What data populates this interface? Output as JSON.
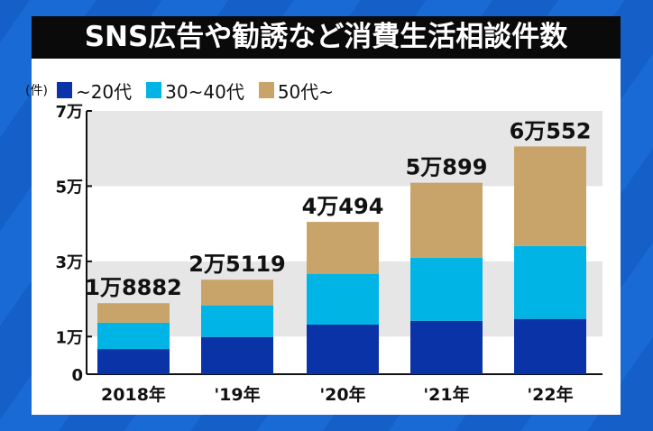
{
  "title": "SNS広告や勧誘など消費生活相談件数",
  "chart_data": {
    "type": "bar",
    "stacked": true,
    "title": "SNS広告や勧誘など消費生活相談件数",
    "unit_label": "(件)",
    "categories": [
      "2018年",
      "'19年",
      "'20年",
      "'21年",
      "'22年"
    ],
    "series": [
      {
        "name": "~20代",
        "color": "#0b33a8",
        "values": [
          6700,
          9900,
          13200,
          14200,
          14700
        ]
      },
      {
        "name": "30~40代",
        "color": "#00b4e6",
        "values": [
          7000,
          8400,
          13500,
          16800,
          19400
        ]
      },
      {
        "name": "50代~",
        "color": "#c9a46a",
        "values": [
          5182,
          6819,
          13794,
          19899,
          26452
        ]
      }
    ],
    "totals": [
      18882,
      25119,
      40494,
      50899,
      60552
    ],
    "total_labels": [
      "1万8882",
      "2万5119",
      "4万494",
      "5万899",
      "6万552"
    ],
    "ylim": [
      0,
      70000
    ],
    "yticks": [
      0,
      10000,
      30000,
      50000,
      70000
    ],
    "ytick_labels": [
      "0",
      "1万",
      "3万",
      "5万",
      "7万"
    ],
    "grid_bands": true,
    "legend_position": "top-left"
  }
}
